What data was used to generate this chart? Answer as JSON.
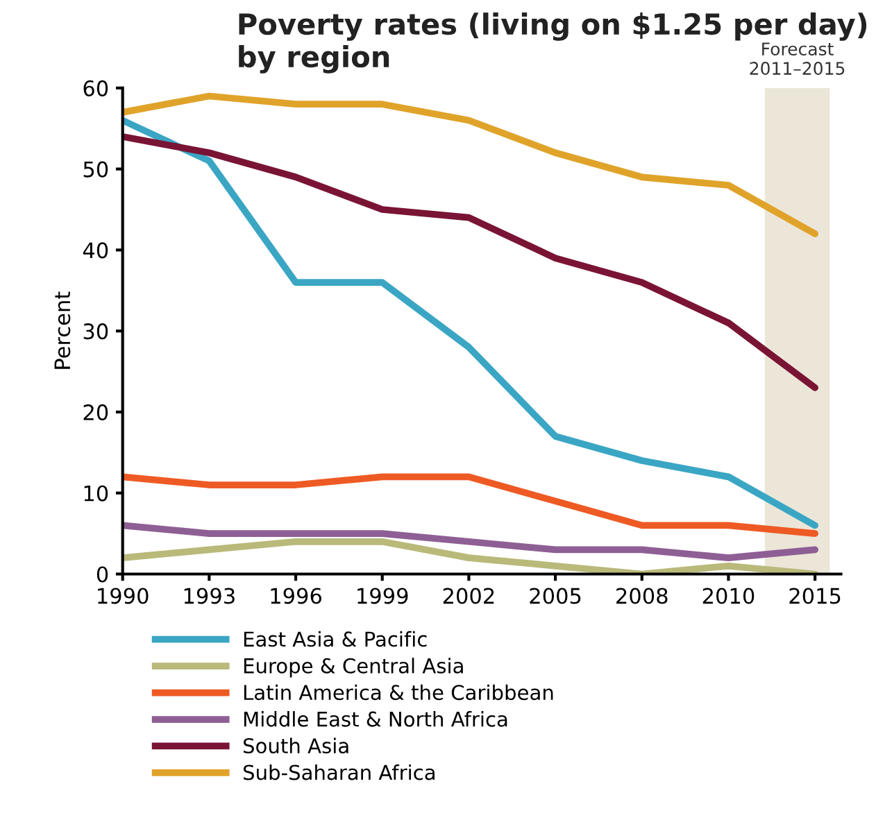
{
  "chart_data": {
    "type": "line",
    "title": "Poverty rates (living on $1.25 per day)\nby region",
    "ylabel": "Percent",
    "categories": [
      "1990",
      "1993",
      "1996",
      "1999",
      "2002",
      "2005",
      "2008",
      "2010",
      "2015"
    ],
    "series": [
      {
        "name": "East Asia & Pacific",
        "color": "#3aa6c4",
        "values": [
          56,
          51,
          36,
          36,
          28,
          17,
          14,
          12,
          6
        ]
      },
      {
        "name": "Europe & Central Asia",
        "color": "#b9b97a",
        "values": [
          2,
          3,
          4,
          4,
          2,
          1,
          0,
          1,
          0
        ]
      },
      {
        "name": "Latin America & the Caribbean",
        "color": "#ee5a24",
        "values": [
          12,
          11,
          11,
          12,
          12,
          9,
          6,
          6,
          5
        ]
      },
      {
        "name": "Middle East & North Africa",
        "color": "#8e5f94",
        "values": [
          6,
          5,
          5,
          5,
          4,
          3,
          3,
          2,
          3
        ]
      },
      {
        "name": "South Asia",
        "color": "#7a1434",
        "values": [
          54,
          52,
          49,
          45,
          44,
          39,
          36,
          31,
          23
        ]
      },
      {
        "name": "Sub-Saharan Africa",
        "color": "#e0a32a",
        "values": [
          57,
          59,
          58,
          58,
          56,
          52,
          49,
          48,
          42
        ]
      }
    ],
    "ylim": [
      0,
      60
    ],
    "yticks": [
      0,
      10,
      20,
      30,
      40,
      50,
      60
    ],
    "grid": false,
    "legend": "bottom",
    "marker": "none",
    "line_style": "solid",
    "bands": [
      {
        "axis": "x",
        "from": "2010",
        "to": "2015",
        "label": "Forecast\n2011–2015",
        "color": "#ebe6d8"
      }
    ]
  }
}
